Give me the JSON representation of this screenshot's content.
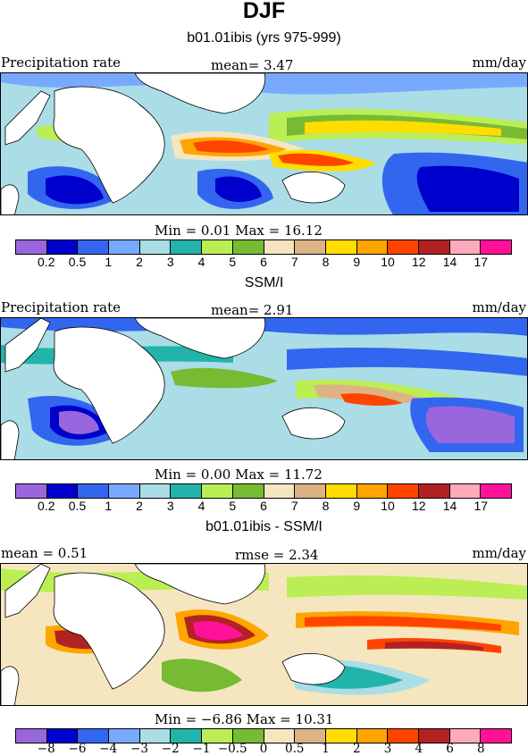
{
  "title": "DJF",
  "colors": [
    "#9966dd",
    "#0000cc",
    "#3366ee",
    "#77aaff",
    "#aadde6",
    "#22b3aa",
    "#bbee55",
    "#77bb33",
    "#f5e6c0",
    "#ddb385",
    "#ffdd00",
    "#ffa500",
    "#ff4400",
    "#b22222",
    "#ffaabb",
    "#ff1199"
  ],
  "panels": [
    {
      "title": "b01.01ibis (yrs 975-999)",
      "left_label": "Precipitation rate",
      "center_label": "mean=   3.47",
      "right_label": "mm/day",
      "min_max": "Min =   0.01 Max =   16.12",
      "ticks": [
        "0.2",
        "0.5",
        "1",
        "2",
        "3",
        "4",
        "5",
        "6",
        "7",
        "8",
        "9",
        "10",
        "12",
        "14",
        "17"
      ]
    },
    {
      "title": "SSM/I",
      "left_label": "Precipitation rate",
      "center_label": "mean=   2.91",
      "right_label": "mm/day",
      "min_max": "Min =   0.00 Max =   11.72",
      "ticks": [
        "0.2",
        "0.5",
        "1",
        "2",
        "3",
        "4",
        "5",
        "6",
        "7",
        "8",
        "9",
        "10",
        "12",
        "14",
        "17"
      ]
    },
    {
      "title": "b01.01ibis - SSM/I",
      "left_label": "mean =    0.51",
      "center_label": "rmse =    2.34",
      "right_label": "mm/day",
      "min_max": "Min =   −6.86 Max =   10.31",
      "ticks": [
        "−8",
        "−6",
        "−4",
        "−3",
        "−2",
        "−1",
        "−0.5",
        "0",
        "0.5",
        "1",
        "2",
        "3",
        "4",
        "6",
        "8"
      ]
    }
  ],
  "chart_data": [
    {
      "type": "heatmap",
      "title": "b01.01ibis (yrs 975-999)",
      "variable": "Precipitation rate",
      "units": "mm/day",
      "mean": 3.47,
      "min": 0.01,
      "max": 16.12,
      "levels": [
        0.2,
        0.5,
        1,
        2,
        3,
        4,
        5,
        6,
        7,
        8,
        9,
        10,
        12,
        14,
        17
      ]
    },
    {
      "type": "heatmap",
      "title": "SSM/I",
      "variable": "Precipitation rate",
      "units": "mm/day",
      "mean": 2.91,
      "min": 0.0,
      "max": 11.72,
      "levels": [
        0.2,
        0.5,
        1,
        2,
        3,
        4,
        5,
        6,
        7,
        8,
        9,
        10,
        12,
        14,
        17
      ]
    },
    {
      "type": "heatmap",
      "title": "b01.01ibis - SSM/I",
      "units": "mm/day",
      "mean": 0.51,
      "rmse": 2.34,
      "min": -6.86,
      "max": 10.31,
      "levels": [
        -8,
        -6,
        -4,
        -3,
        -2,
        -1,
        -0.5,
        0,
        0.5,
        1,
        2,
        3,
        4,
        6,
        8
      ]
    }
  ]
}
